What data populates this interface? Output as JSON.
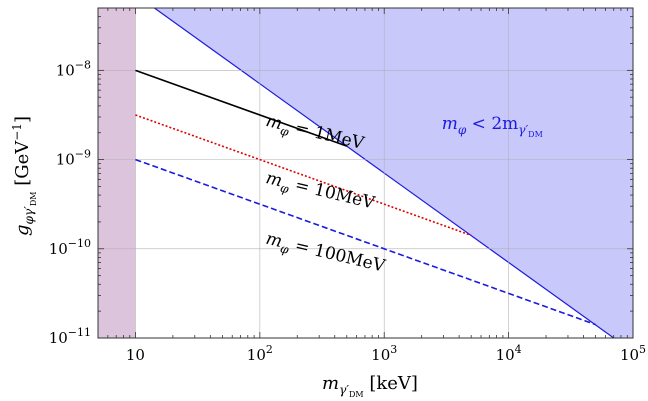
{
  "chart_data": {
    "type": "line",
    "x_scale": "log",
    "y_scale": "log",
    "xlim": [
      5,
      100000
    ],
    "ylim": [
      1e-11,
      5e-08
    ],
    "grid": true,
    "xlabel": {
      "base": "m",
      "sub": "γ′",
      "subsub": "DM",
      "unit": "[keV]"
    },
    "ylabel": {
      "base": "g",
      "sub": "φγ′",
      "subsub": "DM",
      "unit": "[GeV",
      "unit_exp": "−1",
      "unit_end": "]"
    },
    "x_ticks": [
      {
        "value": 10,
        "label": "10"
      },
      {
        "value": 100,
        "base": "10",
        "exp": "2"
      },
      {
        "value": 1000,
        "base": "10",
        "exp": "3"
      },
      {
        "value": 10000,
        "base": "10",
        "exp": "4"
      },
      {
        "value": 100000,
        "base": "10",
        "exp": "5"
      }
    ],
    "y_ticks": [
      {
        "value": 1e-08,
        "base": "10",
        "exp": "−8"
      },
      {
        "value": 1e-09,
        "base": "10",
        "exp": "−9"
      },
      {
        "value": 1e-10,
        "base": "10",
        "exp": "−10"
      },
      {
        "value": 1e-11,
        "base": "10",
        "exp": "−11"
      }
    ],
    "regions": [
      {
        "name": "excluded-low-mass",
        "x": [
          5,
          10
        ],
        "color": "#dcc4dc"
      },
      {
        "name": "forbidden-region",
        "boundary": [
          [
            14.2,
            5e-08
          ],
          [
            70000,
            1e-11
          ]
        ],
        "color": "#c8c8fa",
        "edge_color": "#1a1ae0"
      }
    ],
    "series": [
      {
        "name": "",
        "x": [
          10,
          500
        ],
        "y": [
          1e-08,
          1.414e-09
        ],
        "color": "#000000",
        "dash": "solid"
      },
      {
        "name": "",
        "x": [
          10,
          5000
        ],
        "y": [
          3.16e-09,
          1.414e-10
        ],
        "color": "#e00000",
        "dash": "dotted"
      },
      {
        "name": "",
        "x": [
          10,
          50000
        ],
        "y": [
          1e-09,
          1.414e-11
        ],
        "color": "#1a1ae0",
        "dash": "dashed"
      }
    ],
    "annotations": [
      {
        "base": "m",
        "sub": "φ",
        "text": " = 1MeV",
        "at": [
          110,
          2.4e-09
        ],
        "angle": 13.5,
        "color": "#000000"
      },
      {
        "base": "m",
        "sub": "φ",
        "text": " = 10MeV",
        "at": [
          110,
          5.5e-10
        ],
        "angle": 13.5,
        "color": "#000000"
      },
      {
        "base": "m",
        "sub": "φ",
        "text": " = 100MeV",
        "at": [
          110,
          1.15e-10
        ],
        "angle": 13.5,
        "color": "#000000"
      },
      {
        "base": "m",
        "sub": "φ",
        "text": " < 2m",
        "sub2": "γ′",
        "subsub2": "DM",
        "at": [
          2900,
          2.2e-09
        ],
        "angle": 0,
        "color": "#1a1ae0"
      }
    ]
  }
}
